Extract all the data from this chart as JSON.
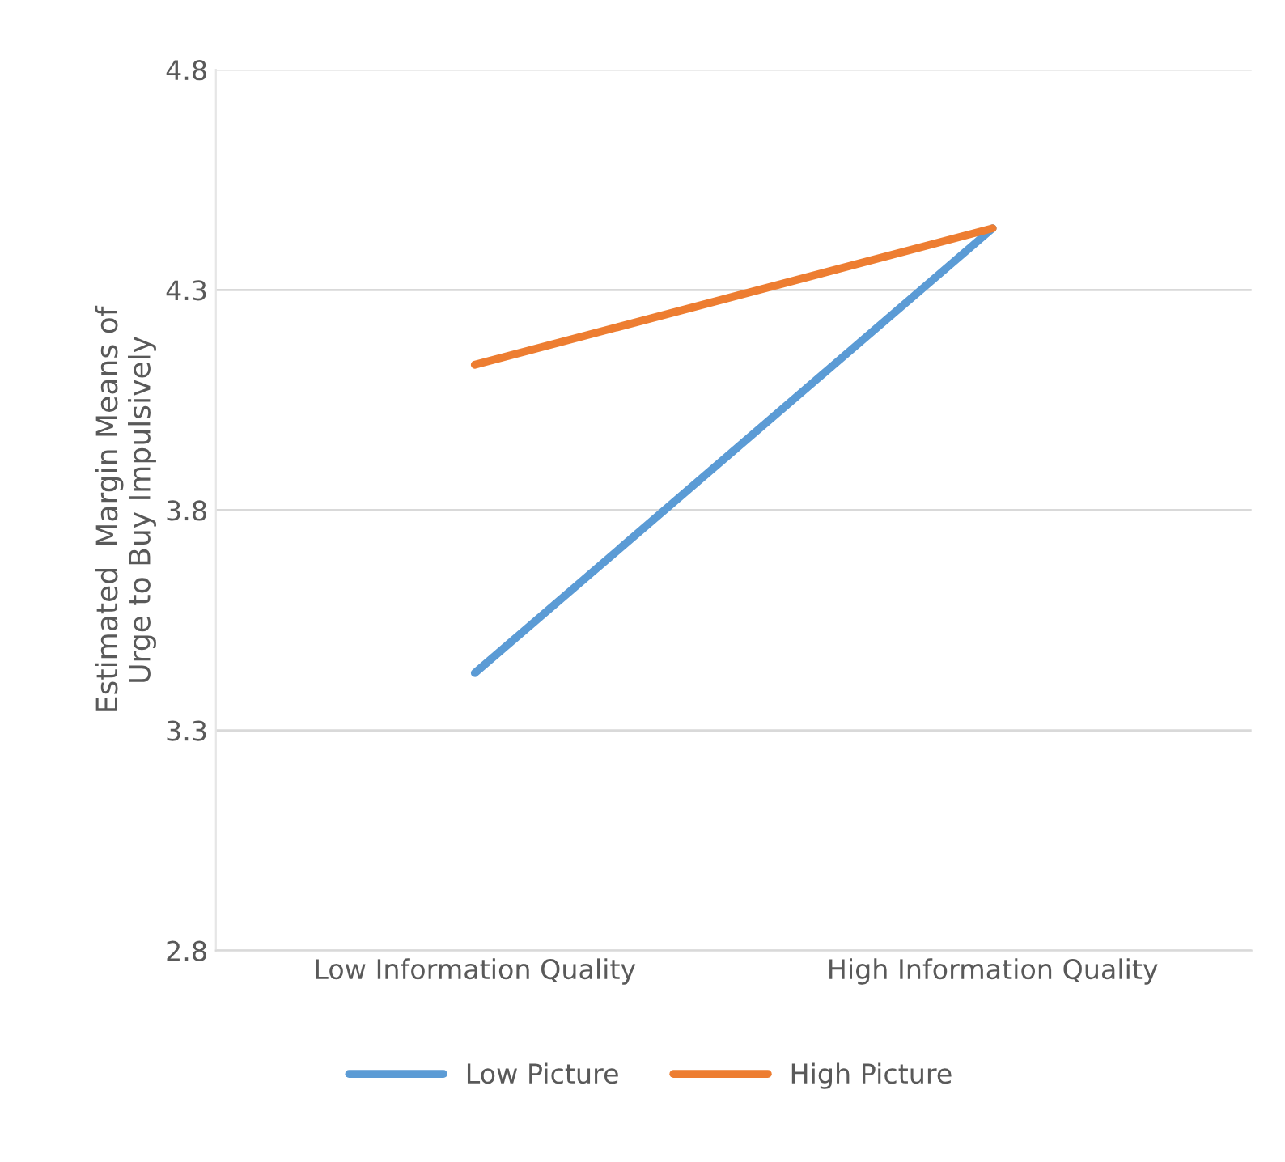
{
  "chart_data": {
    "type": "line",
    "ylabel": "Estimated  Margin Means of\nUrge to Buy Impulsively",
    "categories": [
      "Low Information Quality",
      "High Information Quality"
    ],
    "series": [
      {
        "name": "Low Picture",
        "color": "#5b9bd5",
        "values": [
          3.43,
          4.44
        ]
      },
      {
        "name": "High Picture",
        "color": "#ed7d31",
        "values": [
          4.13,
          4.44
        ]
      }
    ],
    "ylim": [
      2.8,
      4.8
    ],
    "yticks": [
      2.8,
      3.3,
      3.8,
      4.3,
      4.8
    ],
    "grid": "y",
    "legend": "bottom",
    "marker": "none",
    "line_style": "solid"
  }
}
